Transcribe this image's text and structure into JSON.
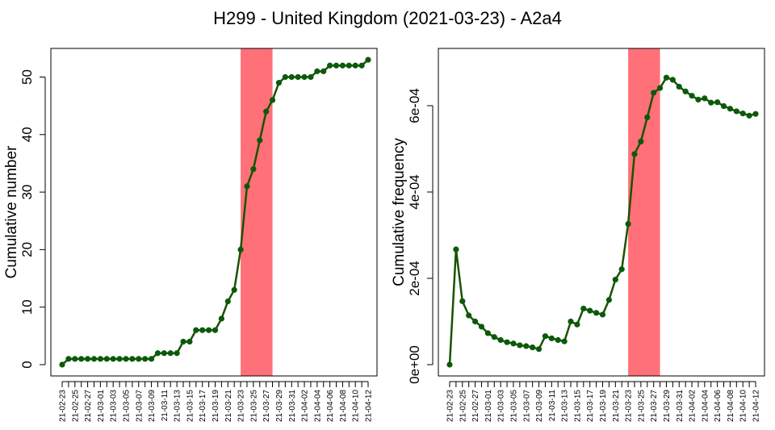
{
  "title": "H299 - United Kingdom (2021-03-23) - A2a4",
  "colors": {
    "line": "#1a5200",
    "marker": "#0b5a0b",
    "highlight": "#ff7078",
    "axis": "#000000"
  },
  "chart_data": [
    {
      "type": "line",
      "ylabel": "Cumulative number",
      "ylim": [
        0,
        55
      ],
      "yticks": [
        "0",
        "10",
        "20",
        "30",
        "40",
        "50"
      ],
      "ytick_values": [
        0,
        10,
        20,
        30,
        40,
        50
      ],
      "highlight": {
        "from": "21-03-23",
        "to": "21-03-28"
      },
      "x": [
        "21-02-23",
        "21-02-24",
        "21-02-25",
        "21-02-26",
        "21-02-27",
        "21-02-28",
        "21-03-01",
        "21-03-02",
        "21-03-03",
        "21-03-04",
        "21-03-05",
        "21-03-06",
        "21-03-07",
        "21-03-08",
        "21-03-09",
        "21-03-10",
        "21-03-11",
        "21-03-12",
        "21-03-13",
        "21-03-14",
        "21-03-15",
        "21-03-16",
        "21-03-17",
        "21-03-18",
        "21-03-19",
        "21-03-20",
        "21-03-21",
        "21-03-22",
        "21-03-23",
        "21-03-24",
        "21-03-25",
        "21-03-26",
        "21-03-27",
        "21-03-28",
        "21-03-29",
        "21-03-30",
        "21-03-31",
        "21-04-01",
        "21-04-02",
        "21-04-03",
        "21-04-04",
        "21-04-05",
        "21-04-06",
        "21-04-07",
        "21-04-08",
        "21-04-09",
        "21-04-10",
        "21-04-11",
        "21-04-12"
      ],
      "values": [
        0,
        1,
        1,
        1,
        1,
        1,
        1,
        1,
        1,
        1,
        1,
        1,
        1,
        1,
        1,
        2,
        2,
        2,
        2,
        4,
        4,
        6,
        6,
        6,
        6,
        8,
        11,
        13,
        20,
        31,
        34,
        39,
        44,
        46,
        49,
        50,
        50,
        50,
        50,
        50,
        51,
        51,
        52,
        52,
        52,
        52,
        52,
        52,
        53
      ]
    },
    {
      "type": "line",
      "ylabel": "Cumulative frequency",
      "ylim": [
        0,
        0.00069
      ],
      "yticks": [
        "0e+00",
        "2e-04",
        "4e-04",
        "6e-04"
      ],
      "ytick_values": [
        0,
        0.0002,
        0.0004,
        0.0006
      ],
      "highlight": {
        "from": "21-03-23",
        "to": "21-03-28"
      },
      "x": [
        "21-02-23",
        "21-02-24",
        "21-02-25",
        "21-02-26",
        "21-02-27",
        "21-02-28",
        "21-03-01",
        "21-03-02",
        "21-03-03",
        "21-03-04",
        "21-03-05",
        "21-03-06",
        "21-03-07",
        "21-03-08",
        "21-03-09",
        "21-03-10",
        "21-03-11",
        "21-03-12",
        "21-03-13",
        "21-03-14",
        "21-03-15",
        "21-03-16",
        "21-03-17",
        "21-03-18",
        "21-03-19",
        "21-03-20",
        "21-03-21",
        "21-03-22",
        "21-03-23",
        "21-03-24",
        "21-03-25",
        "21-03-26",
        "21-03-27",
        "21-03-28",
        "21-03-29",
        "21-03-30",
        "21-03-31",
        "21-04-01",
        "21-04-02",
        "21-04-03",
        "21-04-04",
        "21-04-05",
        "21-04-06",
        "21-04-07",
        "21-04-08",
        "21-04-09",
        "21-04-10",
        "21-04-11",
        "21-04-12"
      ],
      "values": [
        0,
        0.000267,
        0.000147,
        0.000114,
        0.0001,
        8.8e-05,
        7.3e-05,
        6.4e-05,
        5.7e-05,
        5.2e-05,
        4.9e-05,
        4.5e-05,
        4.3e-05,
        4e-05,
        3.6e-05,
        6.6e-05,
        6.1e-05,
        5.7e-05,
        5.4e-05,
        0.0001,
        9.3e-05,
        0.00013,
        0.000125,
        0.00012,
        0.000116,
        0.00015,
        0.000197,
        0.000221,
        0.000326,
        0.000488,
        0.000517,
        0.000573,
        0.00063,
        0.000641,
        0.000665,
        0.00066,
        0.000644,
        0.000633,
        0.000623,
        0.000614,
        0.000617,
        0.000607,
        0.000608,
        0.000599,
        0.000593,
        0.000587,
        0.000582,
        0.000577,
        0.000581
      ]
    }
  ]
}
